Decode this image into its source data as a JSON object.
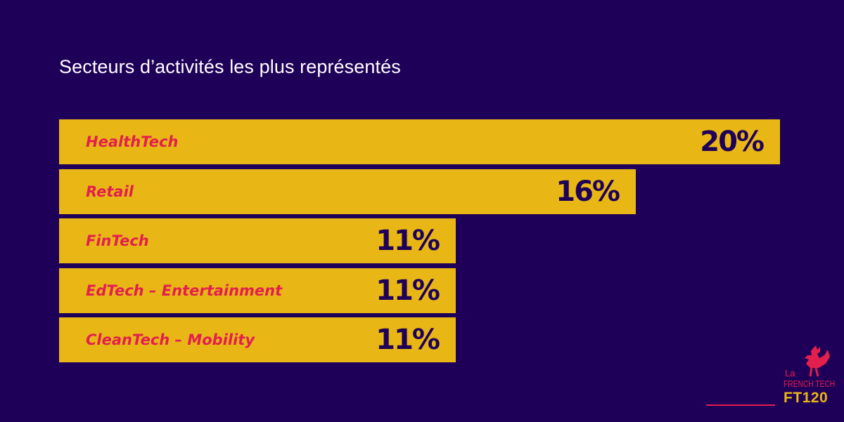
{
  "title": "Secteurs d’activités les plus représentés",
  "chart_data": {
    "type": "bar",
    "orientation": "horizontal",
    "title": "Secteurs d’activités les plus représentés",
    "categories": [
      "HealthTech",
      "Retail",
      "FinTech",
      "EdTech – Entertainment",
      "CleanTech – Mobility"
    ],
    "values": [
      20,
      16,
      11,
      11,
      11
    ],
    "value_labels": [
      "20%",
      "16%",
      "11%",
      "11%",
      "11%"
    ],
    "unit": "%",
    "xlabel": "",
    "ylabel": "",
    "xlim": [
      0,
      20
    ],
    "grid": false,
    "legend": "none",
    "colors": {
      "background": "#1f0058",
      "bar": "#e8b716",
      "label": "#e21f4d",
      "value": "#1f0058"
    }
  },
  "logo": {
    "line1": "La",
    "line2": "FRENCH TECH",
    "line3": "FT120",
    "icon": "rooster-icon"
  }
}
